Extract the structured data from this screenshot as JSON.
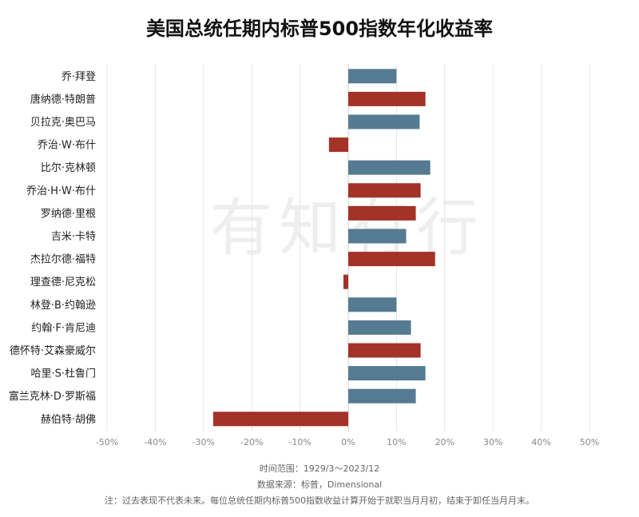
{
  "colors": {
    "blue": "#557b92",
    "red": "#a33227"
  },
  "chart_data": {
    "type": "bar",
    "orientation": "horizontal",
    "title": "美国总统任期内标普500指数年化收益率",
    "xlim": [
      -50,
      50
    ],
    "xticks": [
      "-50%",
      "-40%",
      "-30%",
      "-20%",
      "-10%",
      "0%",
      "10%",
      "20%",
      "30%",
      "40%",
      "50%"
    ],
    "grid": true,
    "categories": [
      "乔·拜登",
      "唐纳德·特朗普",
      "贝拉克·奥巴马",
      "乔治·W·布什",
      "比尔·克林顿",
      "乔治·H·W·布什",
      "罗纳德·里根",
      "吉米·卡特",
      "杰拉尔德·福特",
      "理查德·尼克松",
      "林登·B·约翰逊",
      "约翰·F·肯尼迪",
      "德怀特·艾森豪威尔",
      "哈里·S·杜鲁门",
      "富兰克林·D·罗斯福",
      "赫伯特·胡佛"
    ],
    "values": [
      10,
      16,
      14.8,
      -4,
      17,
      15,
      14,
      12,
      18,
      -1,
      10,
      13,
      15,
      16,
      14,
      -28
    ],
    "bar_colors": [
      "blue",
      "red",
      "blue",
      "red",
      "blue",
      "red",
      "red",
      "blue",
      "red",
      "red",
      "blue",
      "blue",
      "red",
      "blue",
      "blue",
      "red"
    ]
  },
  "notes": {
    "time_range": "时间范围：1929/3～2023/12",
    "source": "数据来源：标普，Dimensional",
    "disclaimer": "注：过去表现不代表未来。每位总统任期内标普500指数收益计算开始于就职当月月初，结束于卸任当月月末。"
  },
  "watermark": {
    "text": "有知有行"
  }
}
